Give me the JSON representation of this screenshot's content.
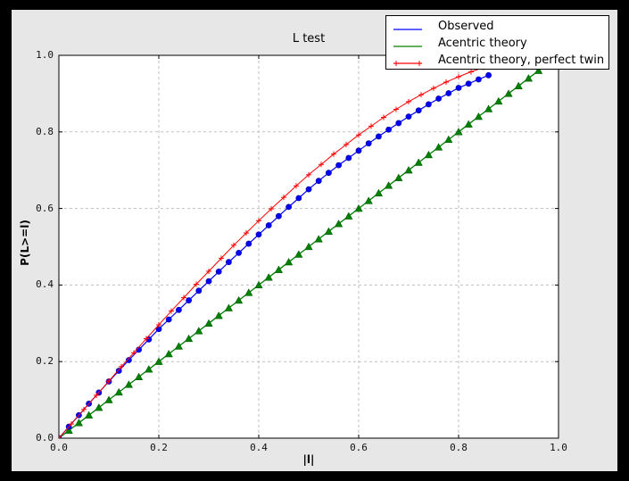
{
  "window": {
    "frame_color": "#000000"
  },
  "figure": {
    "background": "#e7e7e7"
  },
  "chart_data": {
    "type": "line",
    "title": "L test",
    "xlabel": "|l|",
    "ylabel": "P(L>=l)",
    "xlim": [
      0.0,
      1.0
    ],
    "ylim": [
      0.0,
      1.0
    ],
    "grid": true,
    "grid_color": "#bfbfbf",
    "plot_bg": "#ffffff",
    "axes_color": "#000000",
    "x_ticks": [
      0.0,
      0.2,
      0.4,
      0.6,
      0.8,
      1.0
    ],
    "x_tick_labels": [
      "0.0",
      "0.2",
      "0.4",
      "0.6",
      "0.8",
      "1.0"
    ],
    "y_ticks": [
      0.0,
      0.2,
      0.4,
      0.6,
      0.8,
      1.0
    ],
    "y_tick_labels": [
      "0.0",
      "0.2",
      "0.4",
      "0.6",
      "0.8",
      "1.0"
    ],
    "legend_position": "upper right",
    "series": [
      {
        "name": "Observed",
        "color": "#0000ff",
        "marker": "circle",
        "x": [
          0,
          0.02,
          0.04,
          0.06,
          0.08,
          0.1,
          0.12,
          0.14,
          0.16,
          0.18,
          0.2,
          0.22,
          0.24,
          0.26,
          0.28,
          0.3,
          0.32,
          0.34,
          0.36,
          0.38,
          0.4,
          0.42,
          0.44,
          0.46,
          0.48,
          0.5,
          0.52,
          0.54,
          0.56,
          0.58,
          0.6,
          0.62,
          0.64,
          0.66,
          0.68,
          0.7,
          0.72,
          0.74,
          0.76,
          0.78,
          0.8,
          0.82,
          0.84,
          0.86
        ],
        "y": [
          0,
          0.03,
          0.06,
          0.09,
          0.119,
          0.148,
          0.176,
          0.204,
          0.231,
          0.258,
          0.285,
          0.31,
          0.335,
          0.36,
          0.385,
          0.41,
          0.435,
          0.46,
          0.484,
          0.508,
          0.532,
          0.556,
          0.58,
          0.604,
          0.627,
          0.65,
          0.672,
          0.693,
          0.713,
          0.732,
          0.751,
          0.77,
          0.788,
          0.806,
          0.823,
          0.84,
          0.856,
          0.872,
          0.887,
          0.901,
          0.915,
          0.926,
          0.937,
          0.948
        ]
      },
      {
        "name": "Acentric theory",
        "color": "#008000",
        "marker": "triangle-up",
        "x": [
          0,
          0.02,
          0.04,
          0.06,
          0.08,
          0.1,
          0.12,
          0.14,
          0.16,
          0.18,
          0.2,
          0.22,
          0.24,
          0.26,
          0.28,
          0.3,
          0.32,
          0.34,
          0.36,
          0.38,
          0.4,
          0.42,
          0.44,
          0.46,
          0.48,
          0.5,
          0.52,
          0.54,
          0.56,
          0.58,
          0.6,
          0.62,
          0.64,
          0.66,
          0.68,
          0.7,
          0.72,
          0.74,
          0.76,
          0.78,
          0.8,
          0.82,
          0.84,
          0.86,
          0.88,
          0.9,
          0.92,
          0.94,
          0.96,
          0.98,
          1
        ],
        "y": [
          0,
          0.02,
          0.04,
          0.06,
          0.08,
          0.1,
          0.12,
          0.14,
          0.16,
          0.18,
          0.2,
          0.22,
          0.24,
          0.26,
          0.28,
          0.3,
          0.32,
          0.34,
          0.36,
          0.38,
          0.4,
          0.42,
          0.44,
          0.46,
          0.48,
          0.5,
          0.52,
          0.54,
          0.56,
          0.58,
          0.6,
          0.62,
          0.64,
          0.66,
          0.68,
          0.7,
          0.72,
          0.74,
          0.76,
          0.78,
          0.8,
          0.82,
          0.84,
          0.86,
          0.88,
          0.9,
          0.92,
          0.94,
          0.96,
          0.98,
          1
        ]
      },
      {
        "name": "Acentric theory, perfect twin",
        "color": "#ff0000",
        "marker": "plus",
        "x": [
          0,
          0.025,
          0.05,
          0.075,
          0.1,
          0.125,
          0.15,
          0.175,
          0.2,
          0.225,
          0.25,
          0.275,
          0.3,
          0.325,
          0.35,
          0.375,
          0.4,
          0.425,
          0.45,
          0.475,
          0.5,
          0.525,
          0.55,
          0.575,
          0.6,
          0.625,
          0.65,
          0.675,
          0.7,
          0.725,
          0.75,
          0.775,
          0.8,
          0.825,
          0.85,
          0.875
        ],
        "y": [
          0,
          0.037,
          0.075,
          0.112,
          0.149,
          0.187,
          0.223,
          0.26,
          0.296,
          0.332,
          0.367,
          0.402,
          0.436,
          0.47,
          0.504,
          0.536,
          0.568,
          0.599,
          0.629,
          0.659,
          0.688,
          0.715,
          0.742,
          0.767,
          0.792,
          0.815,
          0.838,
          0.859,
          0.879,
          0.897,
          0.914,
          0.93,
          0.944,
          0.957,
          0.968,
          0.978
        ]
      }
    ]
  }
}
